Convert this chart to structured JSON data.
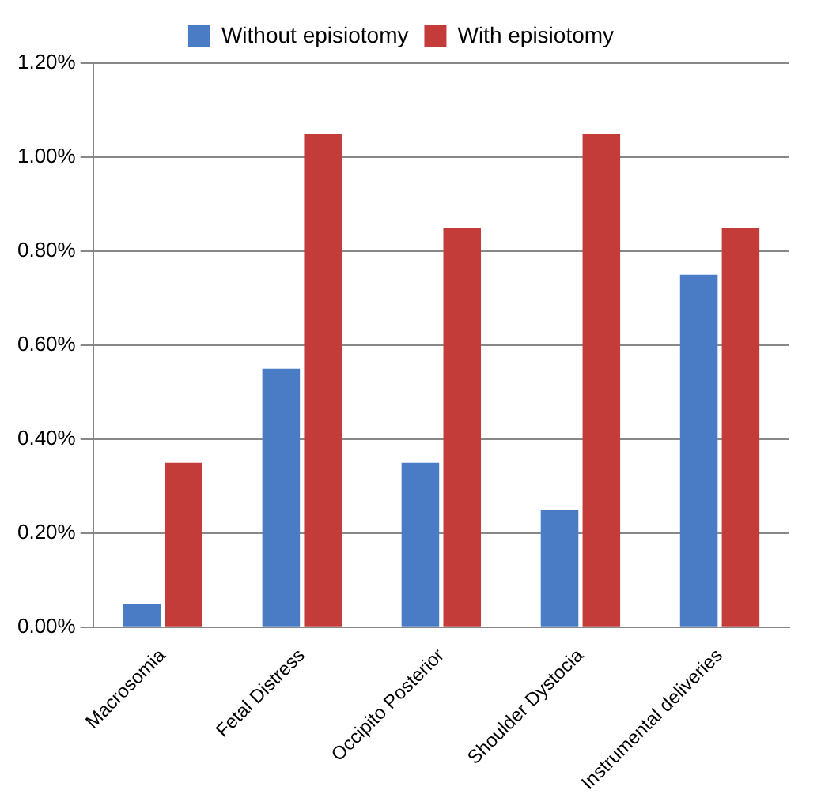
{
  "chart_data": {
    "type": "bar",
    "categories": [
      "Macrosomia",
      "Fetal Distress",
      "Occipito Posterior",
      "Shoulder Dystocia",
      "Instrumental deliveries"
    ],
    "series": [
      {
        "name": "Without episiotomy",
        "color": "#4a7cc6",
        "values": [
          0.05,
          0.55,
          0.35,
          0.25,
          0.75
        ]
      },
      {
        "name": "With episiotomy",
        "color": "#c43c3a",
        "values": [
          0.35,
          1.05,
          0.85,
          1.05,
          0.85
        ]
      }
    ],
    "ylim": [
      0,
      1.2
    ],
    "yticks": [
      {
        "value": 0,
        "label": "0.00%"
      },
      {
        "value": 0.2,
        "label": "0.20%"
      },
      {
        "value": 0.4,
        "label": "0.40%"
      },
      {
        "value": 0.6,
        "label": "0.60%"
      },
      {
        "value": 0.8,
        "label": "0.80%"
      },
      {
        "value": 1,
        "label": "1.00%"
      },
      {
        "value": 1.2,
        "label": "1.20%"
      }
    ],
    "grid": "y",
    "legend": "top"
  }
}
